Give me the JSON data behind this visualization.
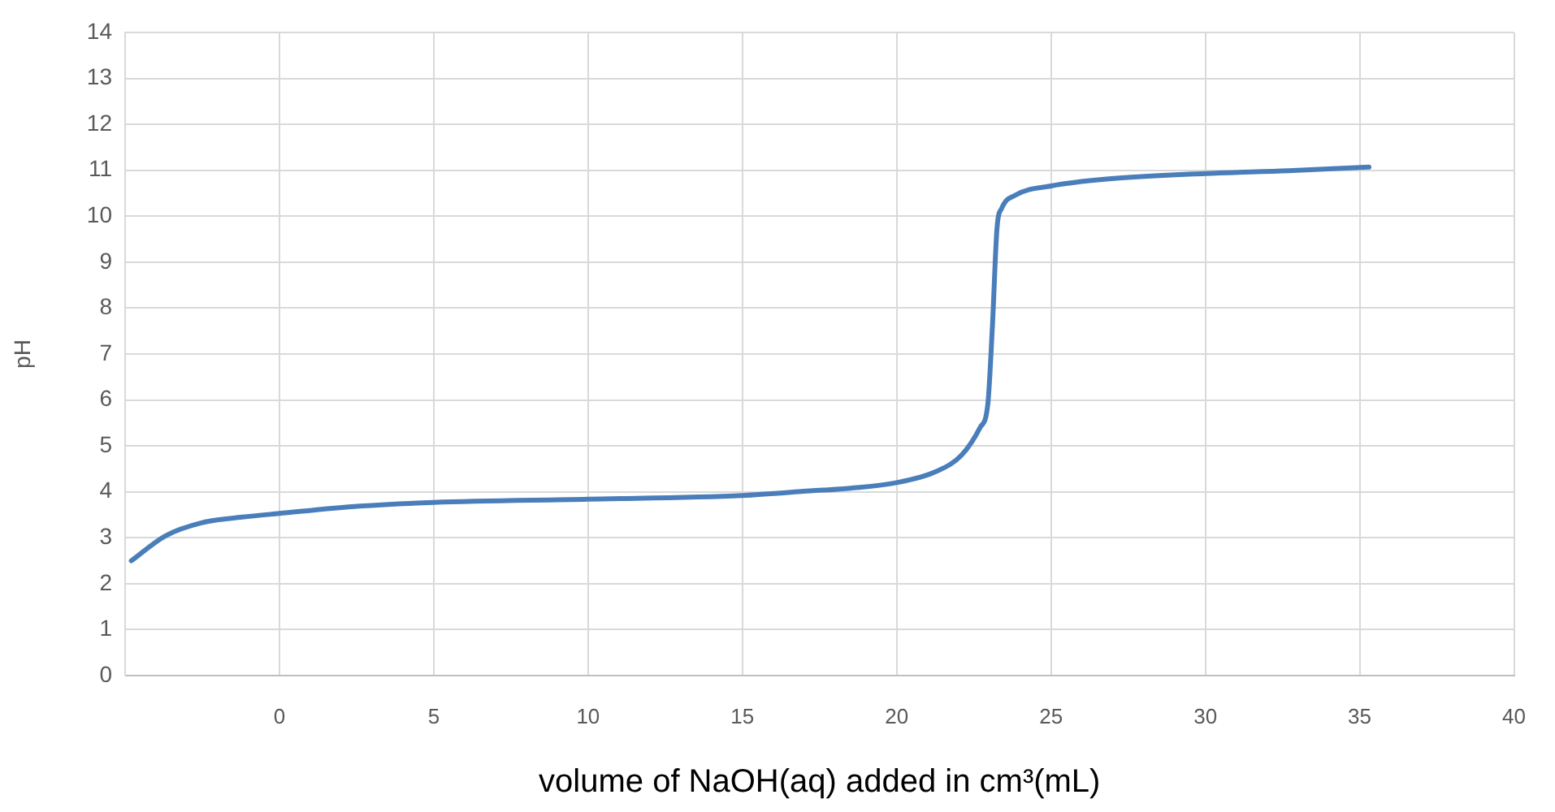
{
  "chart_data": {
    "type": "line",
    "xlabel": "volume of NaOH(aq) added in cm³(mL)",
    "ylabel": "pH",
    "x": [
      -4.8,
      -3.7,
      -2.5,
      -1.2,
      0,
      2.6,
      5,
      10,
      15,
      17.2,
      18.5,
      20,
      21.3,
      22.1,
      22.7,
      22.95,
      23.1,
      23.25,
      23.4,
      23.85,
      25,
      26.8,
      30,
      32.7,
      35.3
    ],
    "series": [
      {
        "color": "#4a7ebb",
        "values": [
          2.5,
          3.04,
          3.33,
          3.45,
          3.53,
          3.69,
          3.77,
          3.84,
          3.92,
          4.02,
          4.08,
          4.2,
          4.45,
          4.8,
          5.4,
          5.9,
          7.6,
          9.75,
          10.17,
          10.46,
          10.66,
          10.81,
          10.93,
          10.99,
          11.07
        ]
      }
    ],
    "xlim": [
      -5,
      40
    ],
    "xticks": [
      0,
      5,
      10,
      15,
      20,
      25,
      30,
      35,
      40
    ],
    "ylim": [
      0,
      14
    ],
    "yticks": [
      0,
      1,
      2,
      3,
      4,
      5,
      6,
      7,
      8,
      9,
      10,
      11,
      12,
      13,
      14
    ],
    "grid": true,
    "marker": "none",
    "line_style": "solid",
    "legend": false
  }
}
